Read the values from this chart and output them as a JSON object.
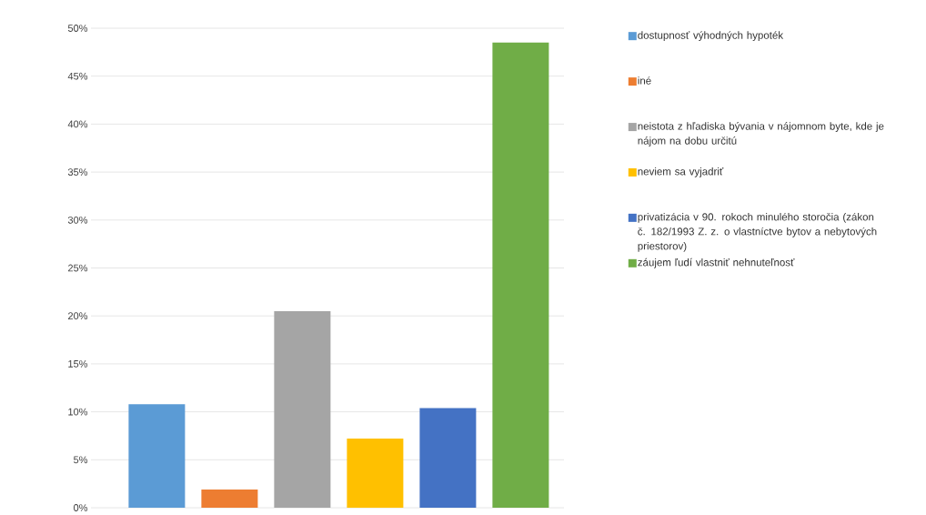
{
  "chart_data": {
    "type": "bar",
    "categories": [
      null
    ],
    "series": [
      {
        "name": "dostupnosť výhodných hypoték",
        "color": "#5b9bd5",
        "values": [
          10.8
        ]
      },
      {
        "name": "iné",
        "color": "#ed7d31",
        "values": [
          1.9
        ]
      },
      {
        "name": "neistota z hľadiska bývania v nájomnom byte, kde je nájom na dobu určitú",
        "color": "#a5a5a5",
        "values": [
          20.5
        ]
      },
      {
        "name": "neviem sa vyjadriť",
        "color": "#ffc000",
        "values": [
          7.2
        ]
      },
      {
        "name": "privatizácia v 90. rokoch minulého storočia (zákon č. 182/1993 Z. z. o vlastníctve bytov a nebytových priestorov)",
        "color": "#4472c4",
        "values": [
          10.4
        ]
      },
      {
        "name": "záujem ľudí vlastniť nehnuteľnosť",
        "color": "#70ad47",
        "values": [
          48.5
        ]
      }
    ],
    "ylim": [
      0,
      50
    ],
    "yticks": [
      {
        "value": 0,
        "label": "0%"
      },
      {
        "value": 5,
        "label": "5%"
      },
      {
        "value": 10,
        "label": "10%"
      },
      {
        "value": 15,
        "label": "15%"
      },
      {
        "value": 20,
        "label": "20%"
      },
      {
        "value": 25,
        "label": "25%"
      },
      {
        "value": 30,
        "label": "30%"
      },
      {
        "value": 35,
        "label": "35%"
      },
      {
        "value": 40,
        "label": "40%"
      },
      {
        "value": 45,
        "label": "45%"
      },
      {
        "value": 50,
        "label": "50%"
      }
    ],
    "grid": "y",
    "legend": "right"
  }
}
